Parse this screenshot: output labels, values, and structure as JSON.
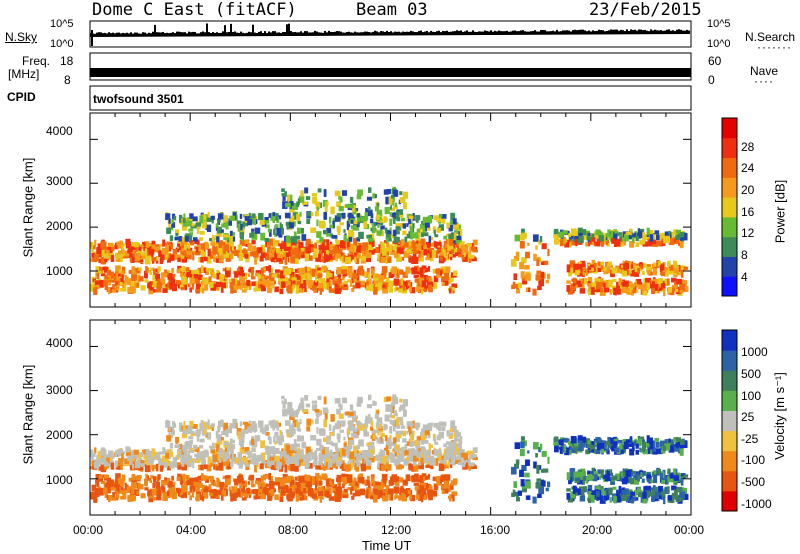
{
  "header": {
    "radar": "Dome C East (fitACF)",
    "beam": "Beam 03",
    "date": "23/Feb/2015"
  },
  "panels": {
    "nsky_label": "N.Sky",
    "nsearch_label": "N.Search",
    "nsky_ticks": [
      "10^5",
      "10^0"
    ],
    "nsearch_ticks": [
      "10^5",
      "10^0"
    ],
    "freq_label": [
      "Freq.",
      "[MHz]"
    ],
    "freq_ticks": [
      "18",
      "8"
    ],
    "nave_label": "Nave",
    "nave_ticks": [
      "60",
      "0"
    ],
    "cpid_label": "CPID",
    "cpid_text": "twofsound 3501"
  },
  "colors": {
    "power": [
      "#1010ff",
      "#2244aa",
      "#3d8c58",
      "#66bb33",
      "#e8c81a",
      "#f59a1a",
      "#f06a10",
      "#ee3010",
      "#e60000"
    ],
    "velocity": [
      "#1030c0",
      "#2c62a8",
      "#3f7f5c",
      "#59b04a",
      "#c0c0bb",
      "#f0c040",
      "#ef8a1a",
      "#e85510",
      "#e00000"
    ]
  },
  "chart_data": [
    {
      "type": "heatmap",
      "name": "power",
      "ylabel": "Slant Range [km]",
      "yticks": [
        1000,
        2000,
        3000,
        4000
      ],
      "ylim": [
        180,
        4600
      ],
      "xlim": [
        0,
        24
      ],
      "colorbar": {
        "label": "Power [dB]",
        "ticks": [
          4,
          8,
          12,
          16,
          20,
          24,
          28
        ],
        "range": [
          0,
          32
        ]
      }
    },
    {
      "type": "heatmap",
      "name": "velocity",
      "ylabel": "Slant Range [km]",
      "yticks": [
        1000,
        2000,
        3000,
        4000
      ],
      "ylim": [
        180,
        4600
      ],
      "xlim": [
        0,
        24
      ],
      "xlabel": "Time UT",
      "xticks": [
        "00:00",
        "04:00",
        "08:00",
        "12:00",
        "16:00",
        "20:00",
        "00:00"
      ],
      "colorbar": {
        "label": "Velocity [m s⁻¹]",
        "ticks": [
          1000,
          500,
          100,
          25,
          -25,
          -100,
          -500,
          -1000
        ]
      }
    }
  ]
}
